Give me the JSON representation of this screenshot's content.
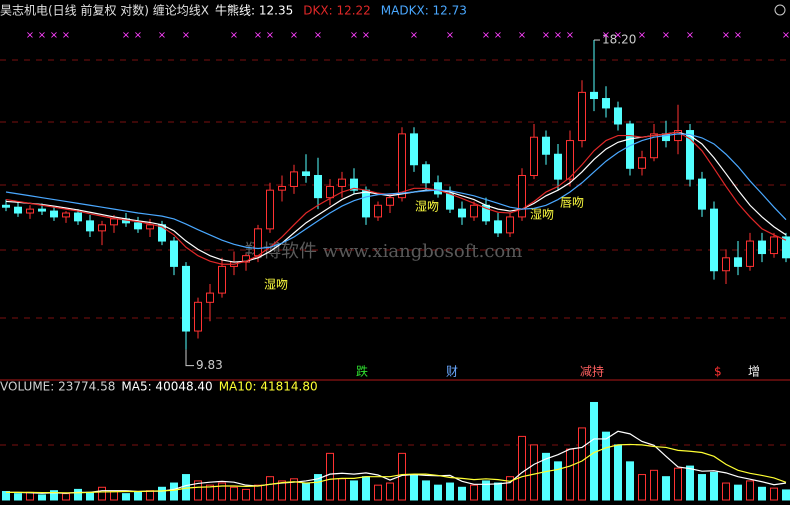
{
  "chart_data": {
    "type": "candlestick",
    "title": "昊志机电(日线 前复权 对数) 缠论均线X",
    "log_scale": true,
    "ylim": [
      9.29,
      18.94
    ],
    "grid": true,
    "up_color": "#ff3232",
    "down_color": "#54ffff",
    "candles": {
      "open": [
        13.1,
        13.05,
        12.9,
        13.0,
        12.95,
        12.8,
        12.9,
        12.7,
        12.45,
        12.6,
        12.75,
        12.65,
        12.5,
        12.6,
        12.2,
        11.6,
        10.2,
        10.8,
        11.0,
        11.6,
        11.7,
        11.85,
        12.5,
        13.5,
        13.6,
        14.0,
        13.9,
        13.3,
        13.6,
        13.8,
        13.5,
        12.8,
        13.1,
        13.3,
        15.1,
        14.2,
        13.7,
        13.4,
        13.0,
        12.8,
        13.1,
        12.7,
        12.4,
        12.8,
        13.9,
        15.0,
        14.5,
        13.8,
        14.9,
        16.4,
        16.2,
        15.9,
        15.4,
        14.1,
        14.4,
        15.1,
        14.9,
        15.2,
        13.8,
        13.0,
        11.5,
        11.8,
        11.6,
        12.2,
        11.9,
        12.3
      ],
      "high": [
        13.25,
        13.2,
        13.1,
        13.15,
        13.05,
        12.95,
        13.0,
        12.85,
        12.7,
        12.85,
        12.9,
        12.8,
        12.75,
        12.7,
        12.3,
        11.7,
        10.9,
        11.2,
        11.8,
        11.95,
        11.9,
        12.6,
        13.7,
        13.9,
        14.2,
        14.5,
        14.4,
        13.8,
        14.0,
        14.1,
        13.6,
        13.2,
        13.4,
        15.3,
        15.3,
        14.3,
        13.9,
        13.6,
        13.2,
        13.2,
        13.3,
        12.9,
        12.9,
        14.1,
        15.4,
        15.2,
        14.8,
        15.2,
        16.8,
        18.2,
        16.6,
        16.1,
        15.5,
        14.6,
        15.4,
        15.5,
        16.0,
        15.4,
        14.0,
        13.2,
        12.0,
        12.2,
        12.4,
        12.4,
        12.4,
        12.4
      ],
      "low": [
        12.95,
        12.8,
        12.75,
        12.85,
        12.7,
        12.65,
        12.6,
        12.3,
        12.1,
        12.4,
        12.55,
        12.4,
        12.3,
        12.1,
        11.4,
        9.83,
        10.05,
        10.4,
        10.9,
        11.4,
        11.5,
        11.7,
        12.4,
        13.2,
        13.4,
        13.7,
        13.0,
        13.1,
        13.3,
        13.4,
        12.6,
        12.7,
        12.9,
        13.2,
        14.0,
        13.5,
        13.3,
        12.9,
        12.6,
        12.7,
        12.6,
        12.3,
        12.3,
        12.7,
        13.8,
        14.2,
        13.5,
        13.6,
        14.7,
        15.8,
        15.6,
        15.2,
        13.9,
        13.9,
        14.3,
        14.7,
        14.5,
        13.6,
        12.8,
        11.3,
        11.2,
        11.4,
        11.5,
        11.7,
        11.8,
        11.7
      ],
      "close": [
        13.05,
        12.9,
        13.0,
        12.95,
        12.8,
        12.9,
        12.7,
        12.45,
        12.6,
        12.75,
        12.65,
        12.5,
        12.6,
        12.2,
        11.6,
        10.2,
        10.8,
        11.0,
        11.6,
        11.7,
        11.85,
        12.5,
        13.5,
        13.6,
        14.0,
        13.9,
        13.3,
        13.6,
        13.8,
        13.5,
        12.8,
        13.1,
        13.3,
        15.1,
        14.2,
        13.7,
        13.4,
        13.0,
        12.8,
        13.1,
        12.7,
        12.4,
        12.8,
        13.9,
        15.0,
        14.5,
        13.8,
        14.9,
        16.4,
        16.2,
        15.9,
        15.4,
        14.1,
        14.4,
        15.1,
        14.9,
        15.2,
        13.8,
        13.0,
        11.5,
        11.8,
        11.6,
        12.2,
        11.9,
        12.3,
        11.8
      ]
    },
    "lines": [
      {
        "name": "牛熊线: 12.35",
        "color": "#ffffff",
        "values": [
          13.2,
          13.18,
          13.15,
          13.12,
          13.08,
          13.03,
          12.98,
          12.92,
          12.86,
          12.8,
          12.75,
          12.7,
          12.66,
          12.6,
          12.45,
          12.2,
          12.0,
          11.85,
          11.75,
          11.7,
          11.72,
          11.8,
          11.95,
          12.15,
          12.4,
          12.65,
          12.85,
          13.05,
          13.25,
          13.4,
          13.45,
          13.4,
          13.35,
          13.4,
          13.45,
          13.5,
          13.5,
          13.45,
          13.35,
          13.25,
          13.1,
          13.0,
          12.95,
          13.0,
          13.15,
          13.35,
          13.5,
          13.7,
          14.0,
          14.35,
          14.65,
          14.85,
          14.95,
          15.0,
          15.05,
          15.1,
          15.15,
          15.05,
          14.8,
          14.4,
          13.95,
          13.5,
          13.1,
          12.8,
          12.55,
          12.35
        ]
      },
      {
        "name": "DKX: 12.22",
        "color": "#e02828",
        "values": [
          13.25,
          13.2,
          13.15,
          13.1,
          13.05,
          13.0,
          12.95,
          12.88,
          12.82,
          12.76,
          12.72,
          12.68,
          12.62,
          12.55,
          12.35,
          12.05,
          11.85,
          11.72,
          11.65,
          11.65,
          11.72,
          11.85,
          12.05,
          12.3,
          12.6,
          12.9,
          13.1,
          13.28,
          13.45,
          13.55,
          13.5,
          13.42,
          13.38,
          13.45,
          13.55,
          13.55,
          13.5,
          13.4,
          13.28,
          13.15,
          13.02,
          12.92,
          12.9,
          13.0,
          13.2,
          13.45,
          13.6,
          13.85,
          14.2,
          14.6,
          14.9,
          15.05,
          15.05,
          15.0,
          15.05,
          15.1,
          15.15,
          14.95,
          14.6,
          14.1,
          13.6,
          13.15,
          12.8,
          12.5,
          12.35,
          12.22
        ]
      },
      {
        "name": "MADKX: 12.73",
        "color": "#4aa8ff",
        "values": [
          13.45,
          13.4,
          13.35,
          13.3,
          13.25,
          13.2,
          13.15,
          13.1,
          13.05,
          13.0,
          12.95,
          12.9,
          12.86,
          12.82,
          12.75,
          12.62,
          12.48,
          12.35,
          12.22,
          12.12,
          12.05,
          12.02,
          12.05,
          12.15,
          12.3,
          12.5,
          12.7,
          12.9,
          13.08,
          13.22,
          13.32,
          13.38,
          13.4,
          13.42,
          13.45,
          13.48,
          13.5,
          13.48,
          13.42,
          13.35,
          13.25,
          13.15,
          13.05,
          13.0,
          13.02,
          13.1,
          13.25,
          13.45,
          13.7,
          14.0,
          14.3,
          14.55,
          14.75,
          14.9,
          15.0,
          15.05,
          15.1,
          15.08,
          14.98,
          14.8,
          14.5,
          14.15,
          13.75,
          13.4,
          13.05,
          12.73
        ]
      }
    ],
    "high_label": "18.20",
    "low_label": "9.83",
    "annotations": [
      "湿吻",
      "湿吻",
      "湿吻",
      "唇吻"
    ],
    "event_marks": [
      {
        "text": "跌",
        "color": "#30e030"
      },
      {
        "text": "财",
        "color": "#6aa8ff"
      },
      {
        "text": "减持",
        "color": "#ff6060"
      },
      {
        "text": "$",
        "color": "#ff3232"
      },
      {
        "text": "增",
        "color": "#f0f0f0"
      }
    ],
    "signal_mark": "×",
    "signal_candles": [
      2,
      3,
      4,
      5,
      10,
      11,
      13,
      15,
      19,
      21,
      22,
      24,
      26,
      29,
      30,
      34,
      37,
      40,
      41,
      43,
      45,
      46,
      47,
      50,
      51,
      53,
      55,
      57,
      60,
      61,
      65
    ],
    "watermark": "翔博软件 www.xiangbosoft.com",
    "volume": {
      "label": "VOLUME: 23774.58",
      "ylim": [
        0,
        250000
      ],
      "values": [
        20000,
        15000,
        18000,
        12000,
        22000,
        15000,
        25000,
        18000,
        30000,
        20000,
        15000,
        18000,
        22000,
        30000,
        40000,
        60000,
        45000,
        35000,
        40000,
        30000,
        25000,
        35000,
        55000,
        45000,
        50000,
        40000,
        60000,
        110000,
        50000,
        45000,
        55000,
        35000,
        40000,
        110000,
        60000,
        45000,
        35000,
        40000,
        30000,
        35000,
        45000,
        40000,
        55000,
        150000,
        130000,
        110000,
        90000,
        120000,
        170000,
        230000,
        160000,
        130000,
        90000,
        60000,
        70000,
        55000,
        75000,
        80000,
        60000,
        65000,
        40000,
        35000,
        45000,
        30000,
        28000,
        23774.58
      ],
      "lines": [
        {
          "name": "MA5: 40048.40",
          "color": "#ffffff",
          "values": [
            18000,
            18000,
            17000,
            16000,
            17000,
            16000,
            18000,
            18000,
            22000,
            22000,
            22000,
            20000,
            21000,
            21000,
            25000,
            34000,
            39000,
            42000,
            44000,
            42000,
            35000,
            33000,
            37000,
            40000,
            42000,
            45000,
            50000,
            61000,
            63000,
            61000,
            64000,
            59000,
            47000,
            58000,
            60000,
            58000,
            57000,
            58000,
            44000,
            37000,
            37000,
            38000,
            41000,
            65000,
            84000,
            97000,
            107000,
            120000,
            124000,
            144000,
            144000,
            162000,
            156000,
            138000,
            129000,
            103000,
            78000,
            74000,
            68000,
            69000,
            64000,
            55000,
            49000,
            43000,
            36000,
            40048.4
          ]
        },
        {
          "name": "MA10: 41814.80",
          "color": "#ffff33",
          "values": [
            18000,
            18000,
            18000,
            17500,
            17500,
            17000,
            17000,
            18000,
            19000,
            19500,
            20000,
            20000,
            21000,
            21500,
            23000,
            28000,
            30000,
            31000,
            33000,
            33000,
            32000,
            33000,
            37000,
            41000,
            43000,
            40000,
            42000,
            49000,
            51000,
            51000,
            55000,
            55000,
            55000,
            60000,
            61000,
            61000,
            58000,
            53000,
            51000,
            48000,
            50000,
            48000,
            44000,
            55000,
            61000,
            67000,
            72000,
            80000,
            92000,
            112000,
            123000,
            130000,
            131000,
            130000,
            126000,
            124000,
            117000,
            115000,
            112000,
            103000,
            84000,
            70000,
            63000,
            58000,
            52000,
            41814.8
          ]
        }
      ]
    }
  }
}
